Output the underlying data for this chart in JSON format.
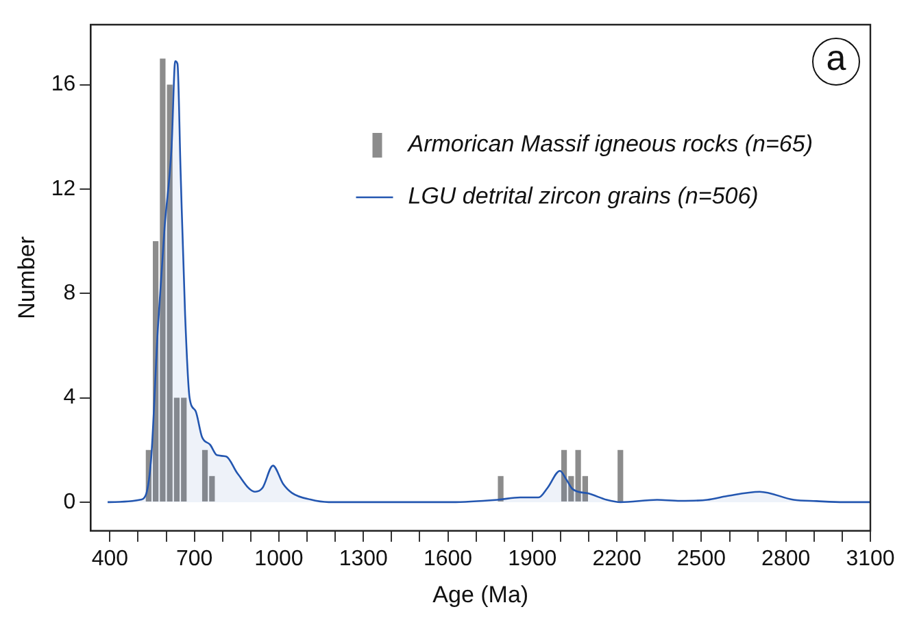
{
  "chart_data": {
    "type": "histogram",
    "xlabel": "Age (Ma)",
    "ylabel": "Number",
    "annotations": [
      "a"
    ],
    "xlim": [
      332,
      3100
    ],
    "ylim": [
      -1.1,
      18.3
    ],
    "xticks": [
      400,
      {
        "value": 500,
        "label": null
      },
      {
        "value": 600,
        "label": null
      },
      700,
      {
        "value": 800,
        "label": null
      },
      {
        "value": 900,
        "label": null
      },
      1000,
      {
        "value": 1100,
        "label": null
      },
      {
        "value": 1200,
        "label": null
      },
      1300,
      {
        "value": 1400,
        "label": null
      },
      {
        "value": 1500,
        "label": null
      },
      1600,
      {
        "value": 1700,
        "label": null
      },
      {
        "value": 1800,
        "label": null
      },
      1900,
      {
        "value": 2000,
        "label": null
      },
      {
        "value": 2100,
        "label": null
      },
      2200,
      {
        "value": 2300,
        "label": null
      },
      {
        "value": 2400,
        "label": null
      },
      2500,
      {
        "value": 2600,
        "label": null
      },
      {
        "value": 2700,
        "label": null
      },
      2800,
      {
        "value": 2900,
        "label": null
      },
      {
        "value": 3000,
        "label": null
      },
      3100
    ],
    "yticks": [
      0,
      4,
      8,
      12,
      16
    ],
    "grid": false,
    "legend": "top right",
    "series": [
      {
        "name": "Armorican Massif igneous rocks (n=65)",
        "color": "#8c8c8c",
        "bins": [
          500,
          525,
          550,
          575,
          600,
          625,
          650,
          675,
          700,
          725,
          750,
          775,
          800,
          825,
          850,
          875,
          900,
          925,
          950,
          975,
          1000,
          1025,
          1050,
          1075,
          1100,
          1125,
          1150,
          1175,
          1200,
          1225,
          1250,
          1275,
          1300,
          1325,
          1350,
          1375,
          1400,
          1425,
          1450,
          1475,
          1500,
          1525,
          1550,
          1575,
          1600,
          1625,
          1650,
          1675,
          1700,
          1725,
          1750,
          1775,
          1800,
          1825,
          1850,
          1875,
          1900,
          1925,
          1950,
          1975,
          2000,
          2025,
          2050,
          2075,
          2100,
          2125,
          2150,
          2175,
          2200,
          2225,
          2250
        ],
        "values": [
          0,
          2,
          10,
          17,
          16,
          4,
          4,
          0,
          0,
          2,
          1,
          0,
          0,
          0,
          0,
          0,
          0,
          0,
          0,
          0,
          0,
          0,
          0,
          0,
          0,
          0,
          0,
          0,
          0,
          0,
          0,
          0,
          0,
          0,
          0,
          0,
          0,
          0,
          0,
          0,
          0,
          0,
          0,
          0,
          0,
          0,
          0,
          0,
          0,
          0,
          0,
          1,
          0,
          0,
          0,
          0,
          0,
          0,
          0,
          0,
          2,
          1,
          2,
          1,
          0,
          0,
          0,
          0,
          2,
          0
        ]
      },
      {
        "type": "area",
        "name": "LGU detrital zircon grains (n=506)",
        "color": "#2356b0",
        "x": [
          392,
          513,
          546,
          570,
          594,
          619,
          632,
          640,
          651,
          667,
          683,
          704,
          727,
          756,
          780,
          813,
          853,
          915,
          942,
          979,
          1015,
          1047,
          1112,
          1177,
          1614,
          1776,
          1857,
          1922,
          1954,
          1998,
          2019,
          2043,
          2100,
          2164,
          2213,
          2343,
          2424,
          2521,
          2585,
          2707,
          2828,
          2909,
          3006,
          3100
        ],
        "values": [
          0,
          0.1,
          1.6,
          6.6,
          10.5,
          13.6,
          16.9,
          16.8,
          12.7,
          7.2,
          4,
          3.5,
          2.5,
          2.2,
          1.8,
          1.75,
          1.1,
          0.4,
          0.55,
          1.4,
          0.7,
          0.35,
          0.1,
          0,
          0,
          0.09,
          0.18,
          0.18,
          0.55,
          1.2,
          0.9,
          0.5,
          0.33,
          0.09,
          0,
          0.09,
          0.05,
          0.09,
          0.22,
          0.4,
          0.09,
          0.04,
          0,
          0
        ]
      }
    ]
  }
}
